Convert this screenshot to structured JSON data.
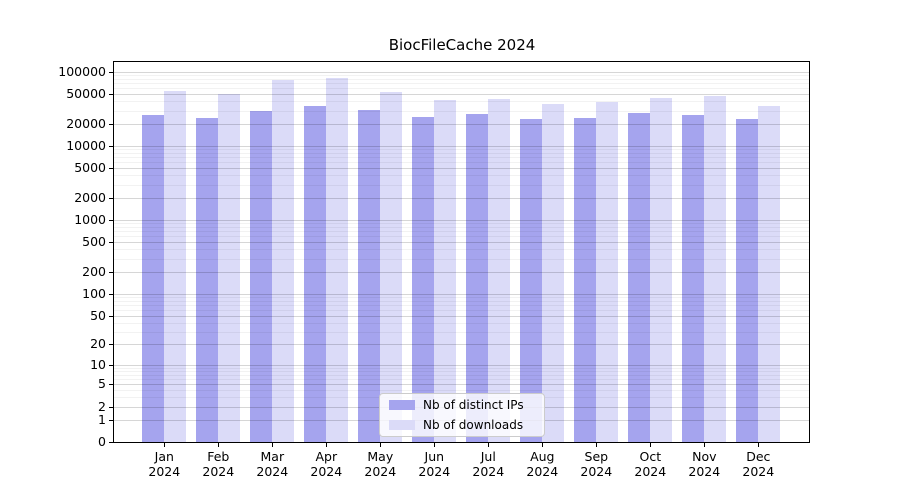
{
  "title": "BiocFileCache 2024",
  "chart_data": {
    "type": "bar",
    "title": "BiocFileCache 2024",
    "categories": [
      "Jan",
      "Feb",
      "Mar",
      "Apr",
      "May",
      "Jun",
      "Jul",
      "Aug",
      "Sep",
      "Oct",
      "Nov",
      "Dec"
    ],
    "category_year": "2024",
    "series": [
      {
        "name": "Nb of distinct IPs",
        "color": "#a5a4ee",
        "values": [
          26000,
          24000,
          30000,
          35000,
          31000,
          25000,
          27000,
          23000,
          24000,
          28000,
          26000,
          23000
        ]
      },
      {
        "name": "Nb of downloads",
        "color": "#dbdbf8",
        "values": [
          55000,
          51000,
          79000,
          84000,
          53000,
          42000,
          43000,
          37000,
          39000,
          44000,
          48000,
          35000
        ]
      }
    ],
    "yscale": "log1p",
    "yticks": [
      0,
      1,
      2,
      5,
      10,
      20,
      50,
      100,
      200,
      500,
      1000,
      2000,
      5000,
      10000,
      20000,
      50000,
      100000
    ],
    "ylim": [
      0,
      136000
    ],
    "xlabel": "",
    "ylabel": "",
    "grid": "both",
    "legend_position": "lower center"
  }
}
